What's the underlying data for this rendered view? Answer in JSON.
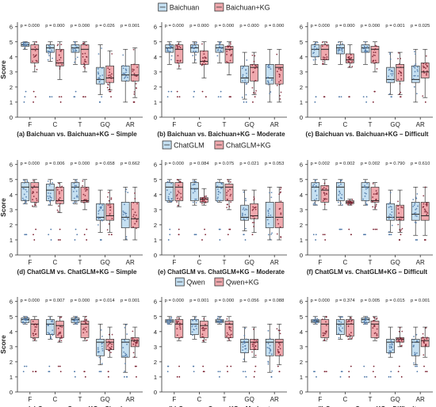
{
  "legends": [
    {
      "labels": [
        "Baichuan",
        "Baichuan+KG"
      ]
    },
    {
      "labels": [
        "ChatGLM",
        "ChatGLM+KG"
      ]
    },
    {
      "labels": [
        "Qwen",
        "Qwen+KG"
      ]
    }
  ],
  "colors": {
    "base": "#c5e0f2",
    "kg": "#f0a9ae",
    "base_dots": "#4f78a8",
    "kg_dots": "#7a2030"
  },
  "chart_data": [
    {
      "type": "box",
      "title": "(a) Baichuan vs. Baichuan+KG – Simple",
      "ylabel": "Score",
      "ylim": [
        0,
        6.3
      ],
      "yticks": [
        0,
        1,
        2,
        3,
        4,
        5,
        6
      ],
      "categories": [
        "F",
        "C",
        "T",
        "GQ",
        "AR"
      ],
      "pvalues": [
        "p = 0.000",
        "p = 0.000",
        "p = 0.000",
        "p = 0.026",
        "p = 0.001"
      ],
      "series": [
        {
          "name": "Baichuan",
          "box": [
            [
              4.5,
              4.7,
              4.8,
              4.95,
              5.0
            ],
            [
              3.7,
              4.3,
              4.6,
              4.8,
              5.0
            ],
            [
              3.5,
              4.3,
              4.6,
              4.8,
              5.0
            ],
            [
              1.5,
              2.2,
              2.5,
              3.3,
              4.8
            ],
            [
              1.0,
              2.4,
              2.8,
              3.4,
              4.5
            ]
          ]
        },
        {
          "name": "Baichuan+KG",
          "box": [
            [
              3.0,
              3.6,
              4.5,
              4.8,
              5.0
            ],
            [
              2.5,
              3.4,
              3.6,
              4.5,
              5.0
            ],
            [
              3.0,
              3.5,
              4.5,
              4.8,
              5.0
            ],
            [
              1.8,
              2.3,
              2.6,
              3.4,
              4.4
            ],
            [
              1.3,
              2.4,
              2.8,
              3.5,
              4.6
            ]
          ]
        }
      ]
    },
    {
      "type": "box",
      "title": "(b) Baichuan vs. Baichuan+KG – Moderate",
      "ylabel": "",
      "ylim": [
        0,
        6.3
      ],
      "yticks": [
        0,
        1,
        2,
        3,
        4,
        5,
        6
      ],
      "categories": [
        "F",
        "C",
        "T",
        "GQ",
        "AR"
      ],
      "pvalues": [
        "p = 0.000",
        "p = 0.000",
        "p = 0.000",
        "p = 0.000",
        "p = 0.000"
      ],
      "series": [
        {
          "name": "Baichuan",
          "box": [
            [
              3.5,
              4.3,
              4.6,
              4.8,
              5.0
            ],
            [
              3.6,
              4.3,
              4.6,
              4.8,
              5.0
            ],
            [
              3.6,
              4.3,
              4.6,
              4.8,
              5.0
            ],
            [
              1.2,
              2.3,
              2.6,
              3.4,
              4.3
            ],
            [
              1.0,
              2.2,
              2.6,
              3.5,
              4.5
            ]
          ]
        },
        {
          "name": "Baichuan+KG",
          "box": [
            [
              3.2,
              3.6,
              4.5,
              4.8,
              5.0
            ],
            [
              2.6,
              3.5,
              3.7,
              4.4,
              5.0
            ],
            [
              2.8,
              3.6,
              4.5,
              4.7,
              5.0
            ],
            [
              1.5,
              2.4,
              3.3,
              3.5,
              4.3
            ],
            [
              1.0,
              2.2,
              3.3,
              3.5,
              4.5
            ]
          ]
        }
      ]
    },
    {
      "type": "box",
      "title": "(c) Baichuan vs. Baichuan+KG – Difficult",
      "ylabel": "",
      "ylim": [
        0,
        6.3
      ],
      "yticks": [
        0,
        1,
        2,
        3,
        4,
        5,
        6
      ],
      "categories": [
        "F",
        "C",
        "T",
        "GQ",
        "AR"
      ],
      "pvalues": [
        "p = 0.000",
        "p = 0.000",
        "p = 0.000",
        "p = 0.001",
        "p = 0.025"
      ],
      "series": [
        {
          "name": "Baichuan",
          "box": [
            [
              3.5,
              4.0,
              4.5,
              4.8,
              5.0
            ],
            [
              3.5,
              4.2,
              4.6,
              4.8,
              5.0
            ],
            [
              3.5,
              4.3,
              4.6,
              4.8,
              5.0
            ],
            [
              1.5,
              2.3,
              2.5,
              3.3,
              4.3
            ],
            [
              1.0,
              2.3,
              2.5,
              3.4,
              4.5
            ]
          ]
        },
        {
          "name": "Baichuan+KG",
          "box": [
            [
              3.5,
              3.8,
              4.5,
              4.8,
              5.0
            ],
            [
              3.3,
              3.6,
              3.8,
              4.2,
              4.8
            ],
            [
              3.0,
              3.6,
              4.5,
              4.7,
              5.0
            ],
            [
              1.5,
              2.4,
              3.3,
              3.5,
              4.3
            ],
            [
              1.3,
              2.6,
              3.0,
              3.6,
              4.5
            ]
          ]
        }
      ]
    },
    {
      "type": "box",
      "title": "(d) ChatGLM vs. ChatGLM+KG – Simple",
      "ylabel": "Score",
      "ylim": [
        0,
        6.3
      ],
      "yticks": [
        0,
        1,
        2,
        3,
        4,
        5,
        6
      ],
      "categories": [
        "F",
        "C",
        "T",
        "GQ",
        "AR"
      ],
      "pvalues": [
        "p = 0.000",
        "p = 0.006",
        "p = 0.000",
        "p = 0.658",
        "p = 0.662"
      ],
      "series": [
        {
          "name": "ChatGLM",
          "box": [
            [
              3.4,
              3.6,
              4.5,
              4.8,
              5.0
            ],
            [
              3.3,
              3.6,
              4.3,
              4.7,
              5.0
            ],
            [
              3.4,
              3.6,
              4.5,
              4.8,
              5.0
            ],
            [
              1.5,
              2.3,
              2.5,
              3.4,
              4.3
            ],
            [
              1.0,
              1.8,
              2.5,
              3.5,
              4.5
            ]
          ]
        },
        {
          "name": "ChatGLM+KG",
          "box": [
            [
              3.2,
              3.5,
              4.5,
              4.8,
              5.0
            ],
            [
              2.8,
              3.4,
              3.6,
              4.5,
              4.8
            ],
            [
              3.0,
              3.5,
              3.6,
              4.5,
              5.0
            ],
            [
              1.5,
              2.3,
              2.6,
              3.4,
              4.3
            ],
            [
              1.0,
              1.8,
              2.4,
              3.5,
              4.5
            ]
          ]
        }
      ]
    },
    {
      "type": "box",
      "title": "(e) ChatGLM vs. ChatGLM+KG – Moderate",
      "ylabel": "",
      "ylim": [
        0,
        6.3
      ],
      "yticks": [
        0,
        1,
        2,
        3,
        4,
        5,
        6
      ],
      "categories": [
        "F",
        "C",
        "T",
        "GQ",
        "AR"
      ],
      "pvalues": [
        "p = 0.000",
        "p = 0.084",
        "p = 0.075",
        "p = 0.021",
        "p = 0.053"
      ],
      "series": [
        {
          "name": "ChatGLM",
          "box": [
            [
              3.5,
              3.6,
              4.5,
              4.8,
              5.0
            ],
            [
              3.3,
              3.6,
              4.4,
              4.8,
              5.0
            ],
            [
              3.5,
              3.6,
              4.5,
              4.8,
              5.0
            ],
            [
              1.6,
              2.3,
              2.5,
              3.3,
              4.3
            ],
            [
              1.0,
              1.8,
              2.5,
              3.5,
              4.5
            ]
          ]
        },
        {
          "name": "ChatGLM+KG",
          "box": [
            [
              3.2,
              3.6,
              4.5,
              4.8,
              5.0
            ],
            [
              3.3,
              3.5,
              3.7,
              3.8,
              4.4
            ],
            [
              3.0,
              3.6,
              4.5,
              4.7,
              5.0
            ],
            [
              1.5,
              2.4,
              2.6,
              3.4,
              4.3
            ],
            [
              1.0,
              1.8,
              2.5,
              3.5,
              4.5
            ]
          ]
        }
      ]
    },
    {
      "type": "box",
      "title": "(f) ChatGLM vs. ChatGLM+KG – Difficult",
      "ylabel": "",
      "ylim": [
        0,
        6.3
      ],
      "yticks": [
        0,
        1,
        2,
        3,
        4,
        5,
        6
      ],
      "categories": [
        "F",
        "C",
        "T",
        "GQ",
        "AR"
      ],
      "pvalues": [
        "p = 0.002",
        "p = 0.002",
        "p = 0.002",
        "p = 0.790",
        "p = 0.610"
      ],
      "series": [
        {
          "name": "ChatGLM",
          "box": [
            [
              3.3,
              3.6,
              4.5,
              4.8,
              5.0
            ],
            [
              3.3,
              3.6,
              4.5,
              4.8,
              5.0
            ],
            [
              3.3,
              3.6,
              4.5,
              4.8,
              5.0
            ],
            [
              1.5,
              2.3,
              2.5,
              3.4,
              4.3
            ],
            [
              1.3,
              2.3,
              2.7,
              3.5,
              4.5
            ]
          ]
        },
        {
          "name": "ChatGLM+KG",
          "box": [
            [
              3.0,
              3.5,
              4.3,
              4.6,
              5.0
            ],
            [
              3.3,
              3.4,
              3.5,
              3.6,
              3.7
            ],
            [
              3.0,
              3.5,
              3.6,
              4.5,
              4.8
            ],
            [
              1.5,
              2.3,
              2.5,
              3.3,
              4.3
            ],
            [
              1.3,
              2.3,
              2.6,
              3.5,
              4.5
            ]
          ]
        }
      ]
    },
    {
      "type": "box",
      "title": "(g) Qwen vs. Qwen+KG – Simple",
      "ylabel": "Score",
      "ylim": [
        0,
        6.3
      ],
      "yticks": [
        0,
        1,
        2,
        3,
        4,
        5,
        6
      ],
      "categories": [
        "F",
        "C",
        "T",
        "GQ",
        "AR"
      ],
      "pvalues": [
        "p = 0.000",
        "p = 0.007",
        "p = 0.000",
        "p = 0.014",
        "p = 0.001"
      ],
      "series": [
        {
          "name": "Qwen",
          "box": [
            [
              4.5,
              4.6,
              4.8,
              4.9,
              5.0
            ],
            [
              3.5,
              3.8,
              4.5,
              4.8,
              5.0
            ],
            [
              4.5,
              4.6,
              4.8,
              4.9,
              5.0
            ],
            [
              1.8,
              2.4,
              3.3,
              3.5,
              4.5
            ],
            [
              1.3,
              2.3,
              3.3,
              3.5,
              4.5
            ]
          ]
        },
        {
          "name": "Qwen+KG",
          "box": [
            [
              3.4,
              3.6,
              4.5,
              4.8,
              5.0
            ],
            [
              3.3,
              3.6,
              4.4,
              4.7,
              5.0
            ],
            [
              3.4,
              3.6,
              4.5,
              4.7,
              5.0
            ],
            [
              2.3,
              2.8,
              3.3,
              3.5,
              4.3
            ],
            [
              2.3,
              3.0,
              3.4,
              3.6,
              4.3
            ]
          ]
        }
      ]
    },
    {
      "type": "box",
      "title": "(h) Qwen vs. Qwen+KG – Moderate",
      "ylabel": "",
      "ylim": [
        0,
        6.3
      ],
      "yticks": [
        0,
        1,
        2,
        3,
        4,
        5,
        6
      ],
      "categories": [
        "F",
        "C",
        "T",
        "GQ",
        "AR"
      ],
      "pvalues": [
        "p = 0.000",
        "p = 0.001",
        "p = 0.000",
        "p = 0.056",
        "p = 0.088"
      ],
      "series": [
        {
          "name": "Qwen",
          "box": [
            [
              4.5,
              4.6,
              4.7,
              4.8,
              5.0
            ],
            [
              3.5,
              3.8,
              4.5,
              4.8,
              5.0
            ],
            [
              4.5,
              4.6,
              4.7,
              4.8,
              5.0
            ],
            [
              2.0,
              2.6,
              3.3,
              3.5,
              4.3
            ],
            [
              1.3,
              2.4,
              3.3,
              3.5,
              4.5
            ]
          ]
        },
        {
          "name": "Qwen+KG",
          "box": [
            [
              3.4,
              3.6,
              4.5,
              4.8,
              5.0
            ],
            [
              3.3,
              3.6,
              4.4,
              4.7,
              5.0
            ],
            [
              3.4,
              3.6,
              4.5,
              4.7,
              5.0
            ],
            [
              2.3,
              2.8,
              3.3,
              3.5,
              4.3
            ],
            [
              1.8,
              2.4,
              3.3,
              3.5,
              4.5
            ]
          ]
        }
      ]
    },
    {
      "type": "box",
      "title": "(i) Qwen vs. Qwen+KG – Difficult",
      "ylabel": "",
      "ylim": [
        0,
        6.3
      ],
      "yticks": [
        0,
        1,
        2,
        3,
        4,
        5,
        6
      ],
      "categories": [
        "F",
        "C",
        "T",
        "GQ",
        "AR"
      ],
      "pvalues": [
        "p = 0.000",
        "p = 0.374",
        "p = 0.005",
        "p = 0.015",
        "p = 0.001"
      ],
      "series": [
        {
          "name": "Qwen",
          "box": [
            [
              4.5,
              4.6,
              4.7,
              4.8,
              5.0
            ],
            [
              3.5,
              3.8,
              4.5,
              4.8,
              5.0
            ],
            [
              4.5,
              4.6,
              4.8,
              4.9,
              5.0
            ],
            [
              2.3,
              2.6,
              3.3,
              3.5,
              4.3
            ],
            [
              1.8,
              2.4,
              3.3,
              3.5,
              4.3
            ]
          ]
        },
        {
          "name": "Qwen+KG",
          "box": [
            [
              3.4,
              3.6,
              4.5,
              4.8,
              5.0
            ],
            [
              3.5,
              3.7,
              4.5,
              4.8,
              5.0
            ],
            [
              3.4,
              3.6,
              4.5,
              4.7,
              5.0
            ],
            [
              3.0,
              3.3,
              3.5,
              3.6,
              4.3
            ],
            [
              2.3,
              3.0,
              3.4,
              3.6,
              4.3
            ]
          ]
        }
      ]
    }
  ]
}
